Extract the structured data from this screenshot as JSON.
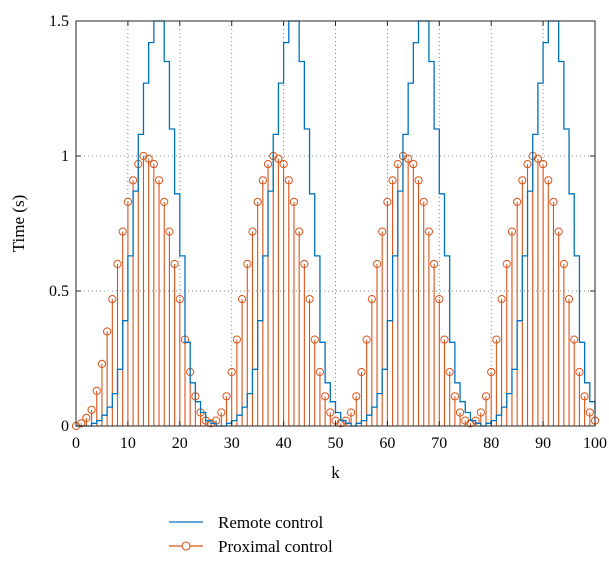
{
  "chart_data": {
    "type": "line",
    "xlabel": "k",
    "ylabel": "Time (s)",
    "xlim": [
      0,
      100
    ],
    "ylim": [
      0,
      1.5
    ],
    "xticks": [
      "0",
      "10",
      "20",
      "30",
      "40",
      "50",
      "60",
      "70",
      "80",
      "90",
      "100"
    ],
    "yticks": [
      "0",
      "0.5",
      "1",
      "1.5"
    ],
    "grid": true,
    "legend_position": "bottom-center",
    "series": [
      {
        "name": "Remote control",
        "style": "stairs",
        "color": "#0072BD",
        "x": [
          0,
          1,
          2,
          3,
          4,
          5,
          6,
          7,
          8,
          9,
          10,
          11,
          12,
          13,
          14,
          15,
          16,
          17,
          18,
          19,
          20,
          21,
          22,
          23,
          24,
          25,
          26,
          27,
          28,
          29,
          30,
          31,
          32,
          33,
          34,
          35,
          36,
          37,
          38,
          39,
          40,
          41,
          42,
          43,
          44,
          45,
          46,
          47,
          48,
          49,
          50,
          51,
          52,
          53,
          54,
          55,
          56,
          57,
          58,
          59,
          60,
          61,
          62,
          63,
          64,
          65,
          66,
          67,
          68,
          69,
          70,
          71,
          72,
          73,
          74,
          75,
          76,
          77,
          78,
          79,
          80,
          81,
          82,
          83,
          84,
          85,
          86,
          87,
          88,
          89,
          90,
          91,
          92,
          93,
          94,
          95,
          96,
          97,
          98,
          99,
          100
        ],
        "values": [
          0,
          0,
          0,
          0.01,
          0.02,
          0.04,
          0.07,
          0.12,
          0.21,
          0.39,
          0.63,
          0.87,
          1.08,
          1.27,
          1.42,
          1.5,
          1.5,
          1.35,
          1.1,
          0.86,
          0.63,
          0.31,
          0.16,
          0.09,
          0.05,
          0.02,
          0.01,
          0,
          0,
          0.01,
          0.02,
          0.04,
          0.07,
          0.12,
          0.21,
          0.39,
          0.63,
          0.87,
          1.08,
          1.27,
          1.42,
          1.5,
          1.5,
          1.35,
          1.1,
          0.86,
          0.63,
          0.31,
          0.16,
          0.09,
          0.05,
          0.02,
          0.01,
          0,
          0.01,
          0.02,
          0.04,
          0.07,
          0.12,
          0.21,
          0.39,
          0.63,
          0.87,
          1.08,
          1.27,
          1.42,
          1.5,
          1.5,
          1.35,
          1.1,
          0.86,
          0.63,
          0.31,
          0.16,
          0.09,
          0.05,
          0.02,
          0.01,
          0,
          0.01,
          0.02,
          0.04,
          0.07,
          0.12,
          0.21,
          0.39,
          0.63,
          0.87,
          1.08,
          1.27,
          1.42,
          1.5,
          1.5,
          1.35,
          1.1,
          0.86,
          0.63,
          0.31,
          0.16,
          0.09,
          0.05
        ]
      },
      {
        "name": "Proximal control",
        "style": "stem",
        "color": "#D95319",
        "x": [
          0,
          1,
          2,
          3,
          4,
          5,
          6,
          7,
          8,
          9,
          10,
          11,
          12,
          13,
          14,
          15,
          16,
          17,
          18,
          19,
          20,
          21,
          22,
          23,
          24,
          25,
          26,
          27,
          28,
          29,
          30,
          31,
          32,
          33,
          34,
          35,
          36,
          37,
          38,
          39,
          40,
          41,
          42,
          43,
          44,
          45,
          46,
          47,
          48,
          49,
          50,
          51,
          52,
          53,
          54,
          55,
          56,
          57,
          58,
          59,
          60,
          61,
          62,
          63,
          64,
          65,
          66,
          67,
          68,
          69,
          70,
          71,
          72,
          73,
          74,
          75,
          76,
          77,
          78,
          79,
          80,
          81,
          82,
          83,
          84,
          85,
          86,
          87,
          88,
          89,
          90,
          91,
          92,
          93,
          94,
          95,
          96,
          97,
          98,
          99,
          100
        ],
        "values": [
          0,
          0.01,
          0.03,
          0.06,
          0.13,
          0.23,
          0.35,
          0.47,
          0.6,
          0.72,
          0.83,
          0.91,
          0.97,
          1.0,
          0.99,
          0.97,
          0.91,
          0.83,
          0.72,
          0.6,
          0.47,
          0.32,
          0.2,
          0.11,
          0.05,
          0.02,
          0.01,
          0.02,
          0.05,
          0.11,
          0.2,
          0.32,
          0.47,
          0.6,
          0.72,
          0.83,
          0.91,
          0.97,
          1.0,
          0.99,
          0.97,
          0.91,
          0.83,
          0.72,
          0.6,
          0.47,
          0.32,
          0.2,
          0.11,
          0.05,
          0.02,
          0.01,
          0.02,
          0.05,
          0.11,
          0.2,
          0.32,
          0.47,
          0.6,
          0.72,
          0.83,
          0.91,
          0.97,
          1.0,
          0.99,
          0.97,
          0.91,
          0.83,
          0.72,
          0.6,
          0.47,
          0.32,
          0.2,
          0.11,
          0.05,
          0.02,
          0.01,
          0.02,
          0.05,
          0.11,
          0.2,
          0.32,
          0.47,
          0.6,
          0.72,
          0.83,
          0.91,
          0.97,
          1.0,
          0.99,
          0.97,
          0.91,
          0.83,
          0.72,
          0.6,
          0.47,
          0.32,
          0.2,
          0.11,
          0.05,
          0.02
        ]
      }
    ]
  }
}
